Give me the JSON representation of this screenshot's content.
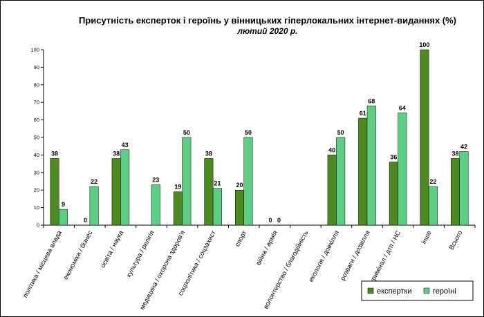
{
  "chart_data": {
    "type": "bar",
    "title": "Присутність експерток і героїнь у вінницьких гіперлокальних інтернет-виданнях (%)",
    "subtitle": "лютий 2020 р.",
    "ylim": [
      0,
      100
    ],
    "yticks": [
      0,
      10,
      20,
      30,
      40,
      50,
      60,
      70,
      80,
      90,
      100
    ],
    "grid": false,
    "legend_position": "bottom-right",
    "categories": [
      "політика / місцева влада",
      "економіка / бізнес",
      "освіта / наука",
      "культура / релігія",
      "медицина / охорона здоров'я",
      "соцполітика / соцзахист",
      "спорт",
      "війна / армія",
      "волонтерство / благодійність",
      "екологія / довкілля",
      "розваги / дозвілля",
      "кримінал / дтп / НС",
      "інше",
      "Всього"
    ],
    "series": [
      {
        "name": "експертки",
        "color": "#4d8a1f",
        "values": [
          38,
          0,
          38,
          null,
          19,
          38,
          20,
          0,
          null,
          40,
          61,
          36,
          100,
          38
        ],
        "labels": [
          "38",
          "0",
          "38",
          "",
          "19",
          "38",
          "20",
          "0",
          "",
          "40",
          "61",
          "36",
          "100",
          "38"
        ]
      },
      {
        "name": "героїні",
        "color": "#5ccf85",
        "values": [
          9,
          22,
          43,
          23,
          50,
          21,
          50,
          0,
          null,
          50,
          68,
          64,
          22,
          42
        ],
        "labels": [
          "9",
          "22",
          "43",
          "23",
          "50",
          "21",
          "50",
          "0",
          "",
          "50",
          "68",
          "64",
          "22",
          "42"
        ]
      }
    ]
  }
}
